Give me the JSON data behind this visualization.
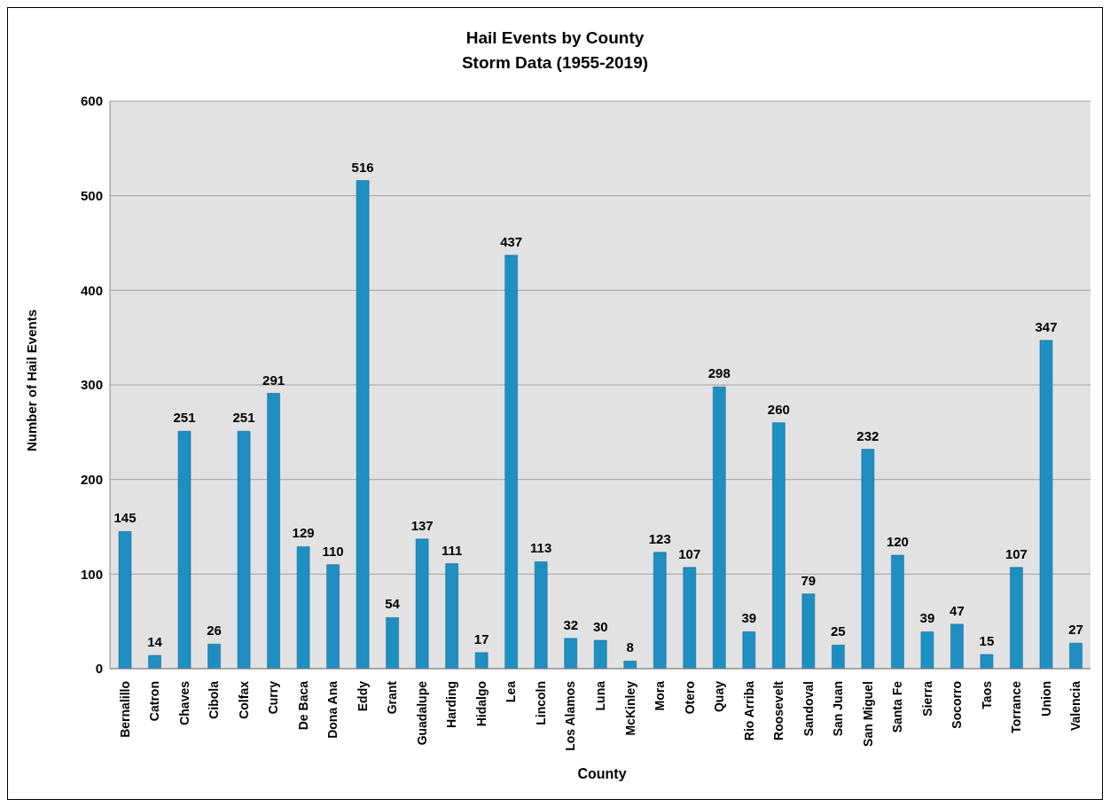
{
  "chart_data": {
    "type": "bar",
    "title": "Hail Events by County",
    "subtitle": "Storm Data (1955-2019)",
    "xlabel": "County",
    "ylabel": "Number of Hail Events",
    "categories": [
      "Bernalillo",
      "Catron",
      "Chaves",
      "Cibola",
      "Colfax",
      "Curry",
      "De Baca",
      "Dona Ana",
      "Eddy",
      "Grant",
      "Guadalupe",
      "Harding",
      "Hidalgo",
      "Lea",
      "Lincoln",
      "Los Alamos",
      "Luna",
      "McKinley",
      "Mora",
      "Otero",
      "Quay",
      "Rio Arriba",
      "Roosevelt",
      "Sandoval",
      "San Juan",
      "San Miguel",
      "Santa Fe",
      "Sierra",
      "Socorro",
      "Taos",
      "Torrance",
      "Union",
      "Valencia"
    ],
    "values": [
      145,
      14,
      251,
      26,
      251,
      291,
      129,
      110,
      516,
      54,
      137,
      111,
      17,
      437,
      113,
      32,
      30,
      8,
      123,
      107,
      298,
      39,
      260,
      79,
      25,
      232,
      120,
      39,
      47,
      15,
      107,
      347,
      27
    ],
    "color": "#1e8fc2",
    "ylim": [
      0,
      600
    ],
    "yticks": [
      0,
      100,
      200,
      300,
      400,
      500,
      600
    ],
    "grid": "y",
    "data_labels": true,
    "legend": false
  }
}
